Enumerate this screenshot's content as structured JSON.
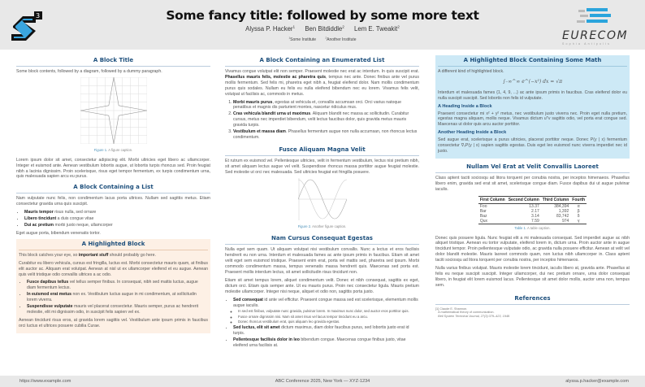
{
  "header": {
    "title": "Some fancy title: followed by some more text",
    "authors": [
      {
        "name": "Alyssa P. Hacker",
        "sup": "1"
      },
      {
        "name": "Ben Bitdiddle",
        "sup": "2"
      },
      {
        "name": "Lem E. Tweakit",
        "sup": "2"
      }
    ],
    "institutes": [
      {
        "sup": "1",
        "name": "Some Institute"
      },
      {
        "sup": "2",
        "name": "Another Institute"
      }
    ],
    "logo_right": "EURECOM",
    "logo_right_sub": "Sophia Antipolis",
    "logo_left": "S3"
  },
  "colors": {
    "heading": "#1d4f7c",
    "header_bg": "#e8e8e8",
    "highlight_bg": "#fdf0e5",
    "math_bg": "#cde9f6"
  },
  "col1": {
    "block1": {
      "title": "A Block Title",
      "intro": "Some block contents, followed by a diagram, followed by a dummy paragraph.",
      "fig_label": "Figure 1.",
      "fig_caption": "A figure caption.",
      "para": "Lorem ipsum dolor sit amet, consectetur adipiscing elit. Morbi ultricies eget libero ac ullamcorper. Integer et euismod ante. Aenean vestibulum lobortis augue, ut lobortis turpis rhoncus sed. Proin feugiat nibh a lacinia dignissim. Proin scelerisque, risus eget tempor fermentum, ex turpis condimentum urna, quis malesuada sapien arcu eu purus."
    },
    "block2": {
      "title": "A Block Containing a List",
      "intro": "Nam vulputate nunc felis, non condimentum lacus porta ultrices. Nullam sed sagittis metus. Etiam consectetur gravida urna quis suscipit.",
      "items": [
        {
          "b": "Mauris tempor",
          "t": " risus nulla, sed ornare"
        },
        {
          "b": "Libero tincidunt",
          "t": " a duis congue vitae"
        },
        {
          "b": "Dui ac pretium",
          "t": " morbi justo neque, ullamcorper"
        }
      ],
      "outro": "Eget augue porta, bibendum venenatis tortor."
    },
    "block3": {
      "title": "A Highlighted Block",
      "p1a": "This block catches your eye, so ",
      "p1b": "important stuff",
      "p1c": " should probably go here.",
      "p2": "Curabitur eu libero vehicula, cursus est fringilla, luctus est. Morbi consectetur mauris quam, at finibus elit auctor ac. Aliquam erat volutpat. Aenean at nisl ut ex ullamcorper eleifend et eu augue. Aenean quis velit tristique odio convallis ultrices a ac odio.",
      "items": [
        {
          "b": "Fusce dapibus tellus",
          "t": " vel tellus semper finibus. In consequat, nibh sed mattis luctus, augue diam fermentum lectus."
        },
        {
          "b": "In euismod erat metus",
          "t": " non ex. Vestibulum luctus augue in mi condimentum, at sollicitudin lorem viverra."
        },
        {
          "b": "Suspendisse vulputate",
          "t": " mauris vel placerat consectetur. Mauris semper, purus ac hendrerit molestie, elit mi dignissim odio, in suscipit felis sapien vel ex."
        }
      ],
      "p3": "Aenean tincidunt risus eros, at gravida lorem sagittis vel. Vestibulum ante ipsum primis in faucibus orci luctus et ultrices posuere cubilia Curae."
    }
  },
  "col2": {
    "block1": {
      "title": "A Block Containing an Enumerated List",
      "p1a": "Vivamus congue volutpat elit non semper. Praesent molestie nec erat ac interdum. In quis suscipit erat. ",
      "p1b": "Phasellus mauris felis, molestie ac pharetra quis",
      "p1c": ", tempus nec ante. Donec finibus ante vel purus mollis fermentum. Sed felis mi, pharetra eget nibh a, feugiat eleifend dolor. Nam mollis condimentum purus quis sodales. Nullam eu felis eu nulla eleifend bibendum nec eu lorem. Vivamus felis velit, volutpat ut facilisis ac, commodo in metus.",
      "items": [
        {
          "b": "Morbi mauris purus",
          "t": ", egestas at vehicula et, convallis accumsan orci. Orci varius natoque penatibus et magnis dis parturient montes, nascetur ridiculus mus."
        },
        {
          "b": "Cras vehicula blandit urna ut maximus",
          "t": ". Aliquam blandit nec massa ac sollicitudin. Curabitur cursus, metus nec imperdiet bibendum, velit lectus faucibus dolor, quis gravida metus mauris gravida turpis."
        },
        {
          "b": "Vestibulum et massa diam",
          "t": ". Phasellus fermentum augue non nulla accumsan, non rhoncus lectus condimentum."
        }
      ]
    },
    "block2": {
      "title": "Fusce Aliquam Magna Velit",
      "para": "Et rutrum ex euismod vel. Pellentesque ultricies, velit in fermentum vestibulum, lectus nisi pretium nibh, sit amet aliquam lectus augue vel velit. Suspendisse rhoncus massa porttitor augue feugiat molestie. Sed molestie ut orci nec malesuada. Sed ultricies feugiat est fringilla posuere.",
      "fig_label": "Figure 2.",
      "fig_caption": "Another figure caption."
    },
    "block3": {
      "title": "Nam Cursus Consequat Egestas",
      "p1": "Nulla eget sem quam. Ut aliquam volutpat nisi vestibulum convallis. Nunc a lectus et eros facilisis hendrerit eu non urna. Interdum et malesuada fames ac ante ipsum primis in faucibus. Etiam sit amet velit eget sem euismod tristique. Praesent enim erat, porta vel mattis sed, pharetra sed ipsum. Morbi commodo condimentum massa, tempus venenatis massa hendrerit quis. Maecenas sed porta est. Praesent mollis interdum lectus, sit amet sollicitudin risus tincidunt non.",
      "p2": "Etiam sit amet tempus lorem, aliquet condimentum velit. Donec et nibh consequat, sagittis ex eget, dictum orci. Etiam quis semper ante. Ut eu mauris purus. Proin nec consectetur ligula. Mauris pretium molestie ullamcorper. Integer nisi neque, aliquet et odio non, sagittis porta justo.",
      "items": [
        {
          "b": "Sed consequat",
          "t": " id ante vel efficitur. Praesent congue massa sed est scelerisque, elementum mollis augue iaculis.",
          "sub": [
            "In sed est finibus, vulputate nunc gravida, pulvinar lorem. In maximus nunc dolor, sed auctor eros porttitor quis.",
            "Fusce ornare dignissim nisi. Nam sit amet risus vel lacus tempor tincidunt eu a arcu.",
            "Donec rhoncus vestibulum erat, quis aliquam leo gravida egestas."
          ]
        },
        {
          "b": "Sed luctus, elit sit amet",
          "t": " dictum maximus, diam dolor faucibus purus, sed lobortis justo erat id turpis."
        },
        {
          "b": "Pellentesque facilisis dolor in leo",
          "t": " bibendum congue. Maecenas congue finibus justo, vitae eleifend urna facilisis at."
        }
      ]
    }
  },
  "col3": {
    "block1": {
      "title": "A Highlighted Block Containing Some Math",
      "intro": "A different kind of highlighted block.",
      "equation": "∫₋∞^∞ e^(−x²) dx = √π",
      "p1": "Interdum et malesuada fames {1, 4, 9, ...} ac ante ipsum primis in faucibus. Cras eleifend dolor eu nulla suscipit suscipit. Sed lobortis non felis id vulputate.",
      "h1": "A Heading Inside a Block",
      "p2": "Praesent consectetur mi x² + y² metus, nec vestibulum justo viverra nec. Proin eget nulla pretium, egestas magna aliquam, mollis neque. Vivamus dictum uᵀv sagittis odio, vel porta erat congue sed. Maecenas ut dolor quis arcu auctor porttitor.",
      "h2": "Another Heading Inside a Block",
      "p3": "Sed augue erat, scelerisque a purus ultricies, placerat porttitor neque. Donec P(y | x) fermentum consectetur ∇ₓP(y | x) sapien sagittis egestas. Duis eget leo euismod nunc viverra imperdiet nec id justo."
    },
    "block2": {
      "title": "Nullam Vel Erat at Velit Convallis Laoreet",
      "p1": "Class aptent taciti sociosqu ad litora torquent per conubia nostra, per inceptos himenaeos. Phasellus libero enim, gravida sed erat sit amet, scelerisque congue diam. Fusce dapibus dui ut augue pulvinar iaculis.",
      "table": {
        "headers": [
          "First Column",
          "Second Column",
          "Third Column",
          "Fourth"
        ],
        "rows": [
          [
            "Foo",
            "13.37",
            "384,394",
            "α"
          ],
          [
            "Bar",
            "2.17",
            "1,392",
            "β"
          ],
          [
            "Baz",
            "3.14",
            "83,742",
            "δ"
          ],
          [
            "Qux",
            "7.59",
            "974",
            "γ"
          ]
        ]
      },
      "table_label": "Table 1.",
      "table_caption": "A table caption.",
      "p2": "Donec quis posuere ligula. Nunc feugiat elit a mi malesuada consequat. Sed imperdiet augue ac nibh aliquet tristique. Aenean eu tortor vulputate, eleifend lorem in, dictum urna. Proin auctor ante in augue tincidunt tempor. Proin pellentesque vulputate odio, ac gravida nulla posuere efficitur. Aenean at velit vel dolor blandit molestie. Mauris laoreet commodo quam, non luctus nibh ullamcorper in. Class aptent taciti sociosqu ad litora torquent per conubia nostra, per inceptos himenaeos.",
      "p3": "Nulla varius finibus volutpat. Mauris molestie lorem tincidunt, iaculis libero at, gravida ante. Phasellus at felis eu neque suscipit suscipit. Integer ullamcorper, dui nec pretium ornare, urna dolor consequat libero, in feugiat elit lorem euismod lacus. Pellentesque sit amet dolor mollis, auctor urna non, tempus sem."
    },
    "refs": {
      "title": "References",
      "items": [
        {
          "num": "[1]",
          "author": "Claude E. Shannon.",
          "title": "A mathematical theory of communication.",
          "venue": "Bell System Technical Journal, 27(3):379–423, 1948."
        }
      ]
    }
  },
  "footer": {
    "left": "https://www.example.com",
    "center": "ABC Conference 2025, New York — XYZ-1234",
    "right": "alyssa.p.hacker@example.com"
  }
}
